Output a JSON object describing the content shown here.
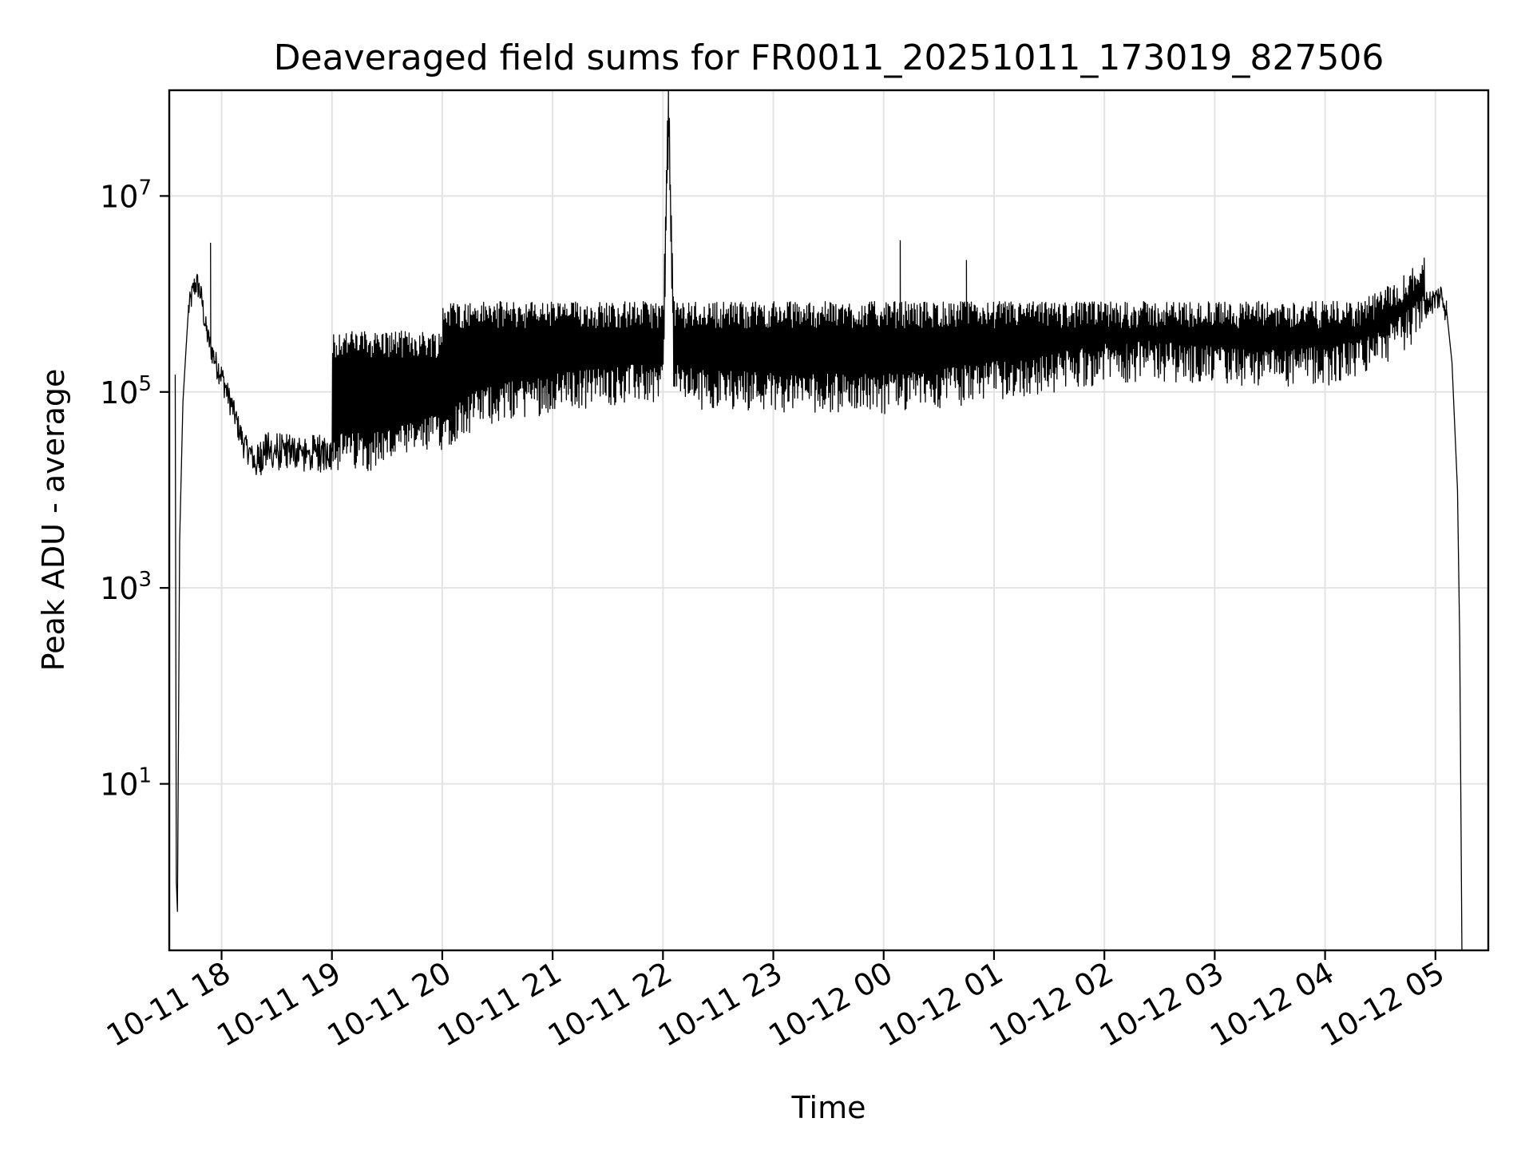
{
  "chart_data": {
    "type": "line",
    "title": "Deaveraged field sums for FR0011_20251011_173019_827506",
    "xlabel": "Time",
    "ylabel": "Peak ADU - average",
    "yscale": "log",
    "ylim": [
      0.2,
      120000000
    ],
    "xlim_hours": [
      -0.474,
      11.479
    ],
    "grid": true,
    "legend": "none",
    "series_color": "#000000",
    "x_ticks": [
      {
        "label": "10-11 18",
        "hour": 0
      },
      {
        "label": "10-11 19",
        "hour": 1
      },
      {
        "label": "10-11 20",
        "hour": 2
      },
      {
        "label": "10-11 21",
        "hour": 3
      },
      {
        "label": "10-11 22",
        "hour": 4
      },
      {
        "label": "10-11 23",
        "hour": 5
      },
      {
        "label": "10-12 00",
        "hour": 6
      },
      {
        "label": "10-12 01",
        "hour": 7
      },
      {
        "label": "10-12 02",
        "hour": 8
      },
      {
        "label": "10-12 03",
        "hour": 9
      },
      {
        "label": "10-12 04",
        "hour": 10
      },
      {
        "label": "10-12 05",
        "hour": 11
      }
    ],
    "y_ticks": [
      {
        "base": "10",
        "exp": "1",
        "value": 10
      },
      {
        "base": "10",
        "exp": "3",
        "value": 1000
      },
      {
        "base": "10",
        "exp": "5",
        "value": 100000
      },
      {
        "base": "10",
        "exp": "7",
        "value": 10000000
      }
    ],
    "series": [
      {
        "name": "Peak ADU - average",
        "x_hours": [
          -0.42,
          -0.41,
          -0.4,
          -0.38,
          -0.35,
          -0.32,
          -0.3,
          -0.25,
          -0.22,
          -0.2,
          -0.18,
          -0.15,
          -0.12,
          -0.08,
          -0.05,
          0.0,
          0.05,
          0.1,
          0.15,
          0.2,
          0.25,
          0.3,
          0.35,
          0.4,
          0.45,
          0.5,
          0.6,
          0.7,
          0.8,
          0.9,
          1.0,
          1.2,
          1.4,
          1.6,
          1.8,
          2.0,
          2.2,
          2.4,
          2.6,
          2.8,
          3.0,
          3.2,
          3.4,
          3.6,
          3.8,
          4.0,
          4.05,
          4.1,
          4.2,
          4.4,
          4.6,
          4.8,
          5.0,
          5.2,
          5.4,
          5.6,
          5.8,
          6.0,
          6.2,
          6.4,
          6.6,
          6.8,
          7.0,
          7.2,
          7.4,
          7.6,
          7.8,
          8.0,
          8.2,
          8.4,
          8.6,
          8.8,
          9.0,
          9.2,
          9.4,
          9.6,
          9.8,
          10.0,
          10.2,
          10.4,
          10.6,
          10.8,
          10.9,
          11.0,
          11.05,
          11.1,
          11.15,
          11.2,
          11.22,
          11.24
        ],
        "values": [
          150000,
          1,
          0.5,
          3000,
          80000,
          300000,
          700000,
          1200000,
          1300000,
          1100000,
          900000,
          500000,
          350000,
          250000,
          200000,
          150000,
          100000,
          70000,
          45000,
          30000,
          25000,
          20000,
          25000,
          30000,
          30000,
          30000,
          30000,
          30000,
          28000,
          28000,
          30000,
          30000,
          32000,
          35000,
          40000,
          50000,
          70000,
          90000,
          100000,
          110000,
          120000,
          130000,
          140000,
          145000,
          150000,
          150000,
          60000000,
          150000,
          140000,
          130000,
          130000,
          130000,
          125000,
          120000,
          120000,
          120000,
          120000,
          120000,
          120000,
          130000,
          140000,
          150000,
          160000,
          170000,
          180000,
          200000,
          220000,
          240000,
          250000,
          260000,
          250000,
          240000,
          230000,
          220000,
          210000,
          210000,
          220000,
          230000,
          250000,
          300000,
          400000,
          600000,
          800000,
          900000,
          1000000,
          700000,
          200000,
          10000,
          300,
          0.2
        ]
      }
    ],
    "annotations": [
      {
        "label": "spike",
        "x_hour": 4.05,
        "value": 60000000
      },
      {
        "label": "spike",
        "x_hour": 6.15,
        "value": 3500000
      },
      {
        "label": "spike",
        "x_hour": 6.75,
        "value": 2200000
      },
      {
        "label": "spike",
        "x_hour": -0.1,
        "value": 3300000
      }
    ]
  }
}
